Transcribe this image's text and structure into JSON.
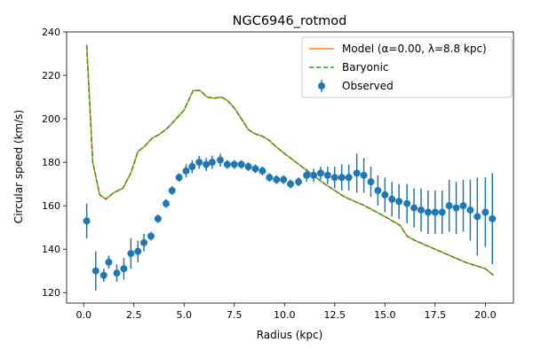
{
  "chart_data": {
    "type": "line",
    "title": "NGC6946_rotmod",
    "xlabel": "Radius (kpc)",
    "ylabel": "Circular speed (km/s)",
    "xlim": [
      -0.85,
      21.4
    ],
    "ylim": [
      115.2,
      240.0
    ],
    "xticks": [
      0.0,
      2.5,
      5.0,
      7.5,
      10.0,
      12.5,
      15.0,
      17.5,
      20.0
    ],
    "xtick_labels": [
      "0.0",
      "2.5",
      "5.0",
      "7.5",
      "10.0",
      "12.5",
      "15.0",
      "17.5",
      "20.0"
    ],
    "yticks": [
      120,
      140,
      160,
      180,
      200,
      220,
      240
    ],
    "ytick_labels": [
      "120",
      "140",
      "160",
      "180",
      "200",
      "220",
      "240"
    ],
    "grid": false,
    "legend_position": "top-right",
    "colors": {
      "model": "#ff7f0e",
      "baryonic": "#2ca02c",
      "observed": "#1f77b4"
    },
    "series": [
      {
        "name": "Model (α=0.00, λ=8.8 kpc)",
        "kind": "line",
        "x": [
          0.15,
          0.45,
          0.8,
          1.1,
          1.5,
          1.95,
          2.35,
          2.7,
          3.0,
          3.4,
          3.8,
          4.2,
          4.6,
          5.0,
          5.15,
          5.45,
          5.8,
          6.15,
          6.5,
          6.85,
          7.15,
          7.5,
          7.85,
          8.2,
          8.55,
          8.9,
          9.25,
          9.6,
          10.0,
          11.0,
          12.0,
          13.0,
          14.0,
          15.0,
          15.75,
          16.1,
          16.5,
          17.0,
          18.0,
          19.0,
          20.0,
          20.4
        ],
        "y": [
          234,
          180,
          165,
          163,
          166,
          168,
          175,
          185,
          187,
          191,
          193,
          196,
          200,
          204,
          207,
          213,
          213,
          210,
          209.5,
          210,
          208.5,
          205,
          200,
          195,
          193,
          192,
          190,
          187,
          184,
          177,
          170,
          164,
          160,
          155,
          151,
          146,
          144,
          142,
          138,
          134,
          131,
          128
        ]
      },
      {
        "name": "Baryonic",
        "kind": "dashed-line",
        "x": [
          0.15,
          0.45,
          0.8,
          1.1,
          1.5,
          1.95,
          2.35,
          2.7,
          3.0,
          3.4,
          3.8,
          4.2,
          4.6,
          5.0,
          5.15,
          5.45,
          5.8,
          6.15,
          6.5,
          6.85,
          7.15,
          7.5,
          7.85,
          8.2,
          8.55,
          8.9,
          9.25,
          9.6,
          10.0,
          11.0,
          12.0,
          13.0,
          14.0,
          15.0,
          15.75,
          16.1,
          16.5,
          17.0,
          18.0,
          19.0,
          20.0,
          20.4
        ],
        "y": [
          234,
          180,
          165,
          163,
          166,
          168,
          175,
          185,
          187,
          191,
          193,
          196,
          200,
          204,
          207,
          213,
          213,
          210,
          209.5,
          210,
          208.5,
          205,
          200,
          195,
          193,
          192,
          190,
          187,
          184,
          177,
          170,
          164,
          160,
          155,
          151,
          146,
          144,
          142,
          138,
          134,
          131,
          128
        ]
      },
      {
        "name": "Observed",
        "kind": "errorbar",
        "x": [
          0.15,
          0.6,
          1.0,
          1.25,
          1.65,
          2.0,
          2.35,
          2.7,
          3.0,
          3.35,
          3.7,
          4.1,
          4.4,
          4.75,
          5.1,
          5.4,
          5.75,
          6.1,
          6.4,
          6.8,
          7.15,
          7.5,
          7.85,
          8.2,
          8.55,
          8.9,
          9.25,
          9.6,
          9.95,
          10.3,
          10.7,
          11.1,
          11.45,
          11.8,
          12.15,
          12.5,
          12.85,
          13.2,
          13.6,
          13.95,
          14.3,
          14.65,
          15.0,
          15.35,
          15.7,
          16.1,
          16.45,
          16.8,
          17.15,
          17.5,
          17.85,
          18.2,
          18.55,
          18.9,
          19.25,
          19.6,
          20.0,
          20.35
        ],
        "y": [
          153,
          130,
          128,
          134,
          129,
          131,
          138,
          139,
          143,
          146,
          154,
          161,
          167,
          173,
          176,
          178,
          180,
          179,
          180,
          181,
          179,
          179,
          179,
          178,
          177,
          176,
          173,
          172,
          172,
          170,
          171,
          174,
          174,
          175,
          174,
          173,
          173,
          173,
          175,
          174,
          171,
          167,
          165,
          163,
          162,
          161,
          159,
          158,
          157,
          157,
          157,
          160,
          159,
          160,
          158,
          155,
          157,
          154
        ],
        "err": [
          8,
          9,
          3,
          3,
          4,
          5,
          7,
          5,
          4,
          2,
          2,
          2,
          2,
          2,
          3,
          3,
          3,
          3,
          3,
          3,
          2,
          2,
          2,
          2,
          2,
          2,
          2,
          2,
          2,
          2,
          2,
          3,
          3,
          3,
          4,
          5,
          6,
          6,
          9,
          8,
          7,
          7,
          8,
          8,
          8,
          9,
          9,
          10,
          10,
          10,
          10,
          12,
          12,
          12,
          14,
          18,
          16,
          21
        ]
      }
    ]
  }
}
